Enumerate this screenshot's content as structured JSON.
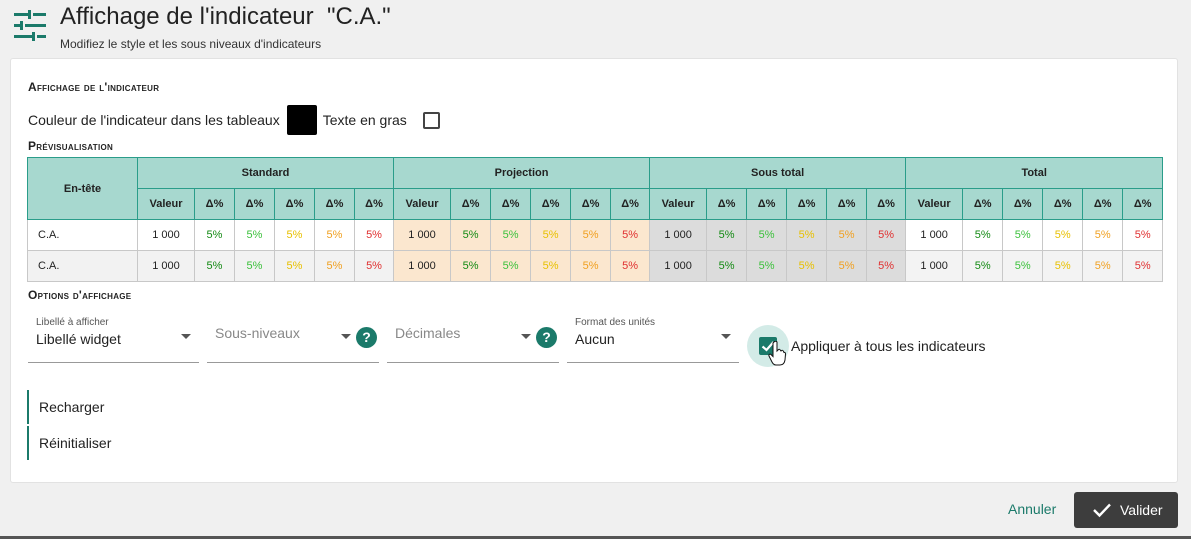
{
  "header": {
    "title": "Affichage de l'indicateur  \"C.A.\"",
    "subtitle": "Modifiez le style et les sous niveaux d'indicateurs",
    "icon": "tune-sliders-icon"
  },
  "display_section": {
    "title": "Affichage de l'indicateur",
    "color_label": "Couleur de l'indicateur dans les tableaux",
    "color_value": "#000000",
    "bold_label": "Texte en gras",
    "bold_checked": false
  },
  "preview": {
    "title": "Prévisualisation",
    "header_label": "En-tête",
    "groups": [
      "Standard",
      "Projection",
      "Sous total",
      "Total"
    ],
    "sub_columns": [
      "Valeur",
      "Δ%",
      "Δ%",
      "Δ%",
      "Δ%",
      "Δ%"
    ],
    "rows": [
      {
        "name": "C.A.",
        "value": "1 000",
        "deltas": [
          "5%",
          "5%",
          "5%",
          "5%",
          "5%"
        ]
      },
      {
        "name": "C.A.",
        "value": "1 000",
        "deltas": [
          "5%",
          "5%",
          "5%",
          "5%",
          "5%"
        ]
      }
    ],
    "colors": {
      "header_bg": "#a7d8cf",
      "projection_bg": "#fbe7cf",
      "subtotal_bg": "#dcdcdc",
      "delta_colors": [
        "#138a13",
        "#3cc13c",
        "#e8c000",
        "#f0a020",
        "#e03030"
      ]
    }
  },
  "options": {
    "title": "Options d'affichage",
    "label_field": {
      "label": "Libellé à afficher",
      "value": "Libellé widget"
    },
    "sub_levels_field": {
      "placeholder": "Sous-niveaux"
    },
    "decimals_field": {
      "placeholder": "Décimales"
    },
    "units_field": {
      "label": "Format des unités",
      "value": "Aucun"
    },
    "apply_all": {
      "label": "Appliquer à tous les indicateurs",
      "checked": true
    }
  },
  "actions": {
    "reload": "Recharger",
    "reset": "Réinitialiser"
  },
  "footer": {
    "cancel": "Annuler",
    "validate": "Valider"
  },
  "accent_color": "#1b7a6a"
}
